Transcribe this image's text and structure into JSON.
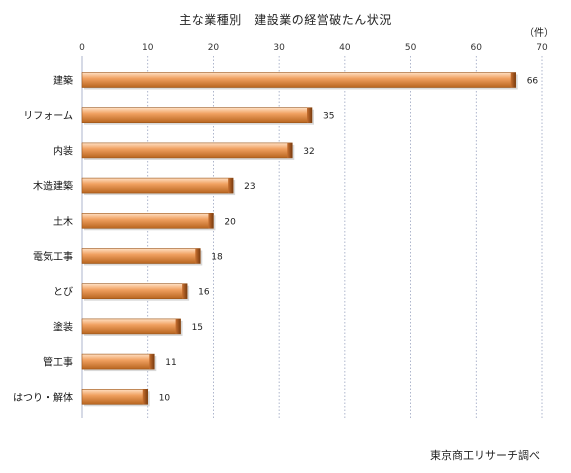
{
  "title": "主な業種別　建設業の経営破たん状況",
  "unit": "（件）",
  "source": "東京商工リサーチ調べ",
  "colors": {
    "bar": "#f0a060",
    "bar_dark": "#a85a20",
    "bar_light": "#ffe0c4",
    "grid": "#9aa4c0"
  },
  "chart_data": {
    "type": "bar",
    "orientation": "horizontal",
    "title": "主な業種別　建設業の経営破たん状況",
    "xlabel": "",
    "ylabel": "",
    "unit": "（件）",
    "xlim": [
      0,
      70
    ],
    "ticks": [
      0,
      10,
      20,
      30,
      40,
      50,
      60,
      70
    ],
    "grid": true,
    "categories": [
      "建築",
      "リフォーム",
      "内装",
      "木造建築",
      "土木",
      "電気工事",
      "とび",
      "塗装",
      "管工事",
      "はつり・解体"
    ],
    "values": [
      66,
      35,
      32,
      23,
      20,
      18,
      16,
      15,
      11,
      10
    ]
  }
}
